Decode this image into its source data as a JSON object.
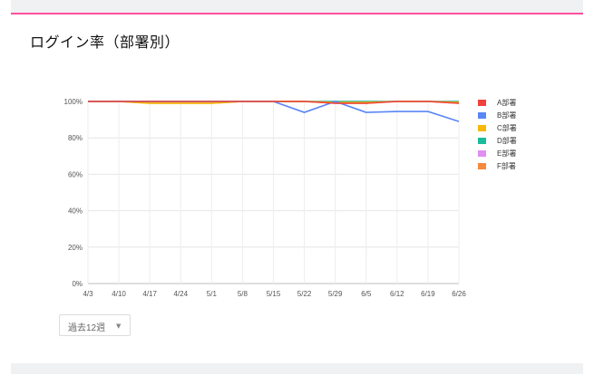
{
  "card": {
    "title": "ログイン率（部署別）",
    "accent_color": "#ff4fa0"
  },
  "controls": {
    "period_label": "過去12週",
    "period_caret": "▼"
  },
  "chart_data": {
    "type": "line",
    "title": "",
    "xlabel": "",
    "ylabel": "",
    "ylim": [
      0,
      100
    ],
    "yticks": [
      0,
      20,
      40,
      60,
      80,
      100
    ],
    "ytick_labels": [
      "0%",
      "20%",
      "40%",
      "60%",
      "80%",
      "100%"
    ],
    "categories": [
      "4/3",
      "4/10",
      "4/17",
      "4/24",
      "5/1",
      "5/8",
      "5/15",
      "5/22",
      "5/29",
      "6/5",
      "6/12",
      "6/19",
      "6/26"
    ],
    "grid": true,
    "legend_position": "right",
    "series": [
      {
        "name": "A部署",
        "color": "#f0413c",
        "values": [
          100,
          100,
          100,
          100,
          100,
          100,
          100,
          100,
          99,
          99,
          100,
          100,
          99
        ]
      },
      {
        "name": "B部署",
        "color": "#5b86f5",
        "values": [
          100,
          100,
          100,
          100,
          100,
          100,
          100,
          94,
          100,
          94,
          94.5,
          94.5,
          89
        ]
      },
      {
        "name": "C部署",
        "color": "#f6b800",
        "values": [
          100,
          100,
          99,
          99,
          99,
          100,
          100,
          100,
          99.5,
          99.5,
          100,
          100,
          99.5
        ]
      },
      {
        "name": "D部署",
        "color": "#1abc9c",
        "values": [
          100,
          100,
          100,
          100,
          100,
          100,
          100,
          100,
          100,
          100,
          100,
          100,
          100
        ]
      },
      {
        "name": "E部署",
        "color": "#e08ef0",
        "values": [
          100,
          100,
          100,
          100,
          100,
          100,
          100,
          100,
          100,
          100,
          100,
          100,
          100
        ]
      },
      {
        "name": "F部署",
        "color": "#f7893b",
        "values": [
          100,
          100,
          99,
          99,
          99,
          100,
          100,
          100,
          99,
          99,
          100,
          100,
          99
        ]
      }
    ]
  }
}
